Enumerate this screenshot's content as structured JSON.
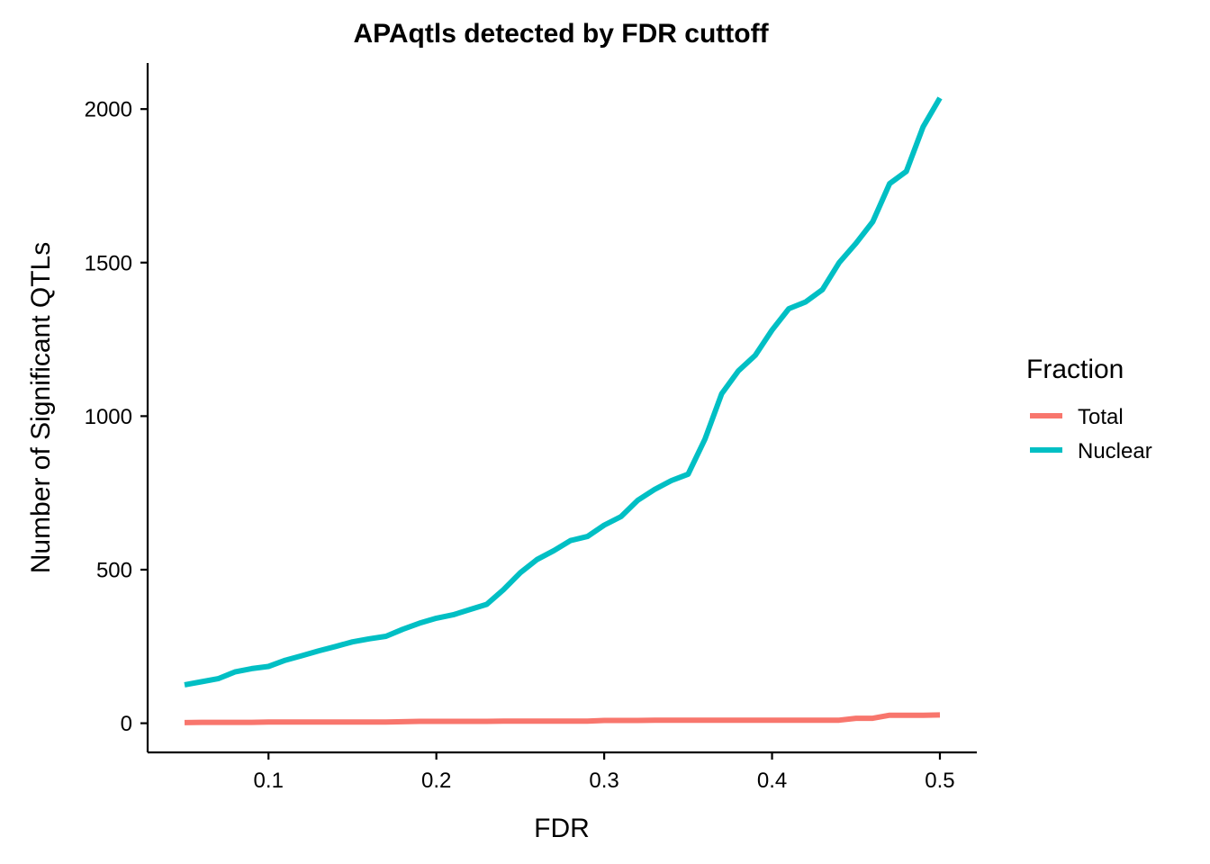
{
  "chart_data": {
    "type": "line",
    "title": "APAqtls detected by FDR cuttoff",
    "xlabel": "FDR",
    "ylabel": "Number of Significant QTLs",
    "xlim": [
      0.028,
      0.522
    ],
    "ylim": [
      -95,
      2150
    ],
    "x_ticks": [
      0.1,
      0.2,
      0.3,
      0.4,
      0.5
    ],
    "x_tick_labels": [
      "0.1",
      "0.2",
      "0.3",
      "0.4",
      "0.5"
    ],
    "y_ticks": [
      0,
      500,
      1000,
      1500,
      2000
    ],
    "y_tick_labels": [
      "0",
      "500",
      "1000",
      "1500",
      "2000"
    ],
    "grid": false,
    "legend": {
      "title": "Fraction",
      "placement": "right"
    },
    "x": [
      0.05,
      0.06,
      0.07,
      0.08,
      0.09,
      0.1,
      0.11,
      0.12,
      0.13,
      0.14,
      0.15,
      0.16,
      0.17,
      0.18,
      0.19,
      0.2,
      0.21,
      0.22,
      0.23,
      0.24,
      0.25,
      0.26,
      0.27,
      0.28,
      0.29,
      0.3,
      0.31,
      0.32,
      0.33,
      0.34,
      0.35,
      0.36,
      0.37,
      0.38,
      0.39,
      0.4,
      0.41,
      0.42,
      0.43,
      0.44,
      0.45,
      0.46,
      0.47,
      0.48,
      0.49,
      0.5
    ],
    "series": [
      {
        "name": "Total",
        "color": "#F8766D",
        "values": [
          2,
          3,
          3,
          3,
          3,
          4,
          4,
          4,
          4,
          4,
          4,
          4,
          4,
          5,
          6,
          6,
          6,
          6,
          6,
          7,
          7,
          7,
          7,
          7,
          7,
          9,
          9,
          9,
          10,
          10,
          10,
          10,
          10,
          10,
          10,
          10,
          10,
          10,
          10,
          10,
          16,
          16,
          26,
          26,
          26,
          27
        ]
      },
      {
        "name": "Nuclear",
        "color": "#00BFC4",
        "values": [
          125,
          135,
          145,
          167,
          178,
          185,
          205,
          220,
          236,
          250,
          265,
          275,
          283,
          306,
          326,
          342,
          353,
          370,
          387,
          435,
          490,
          533,
          562,
          595,
          608,
          645,
          673,
          726,
          761,
          790,
          811,
          925,
          1073,
          1148,
          1198,
          1280,
          1350,
          1372,
          1412,
          1500,
          1563,
          1633,
          1757,
          1797,
          1942,
          2036
        ]
      }
    ]
  }
}
